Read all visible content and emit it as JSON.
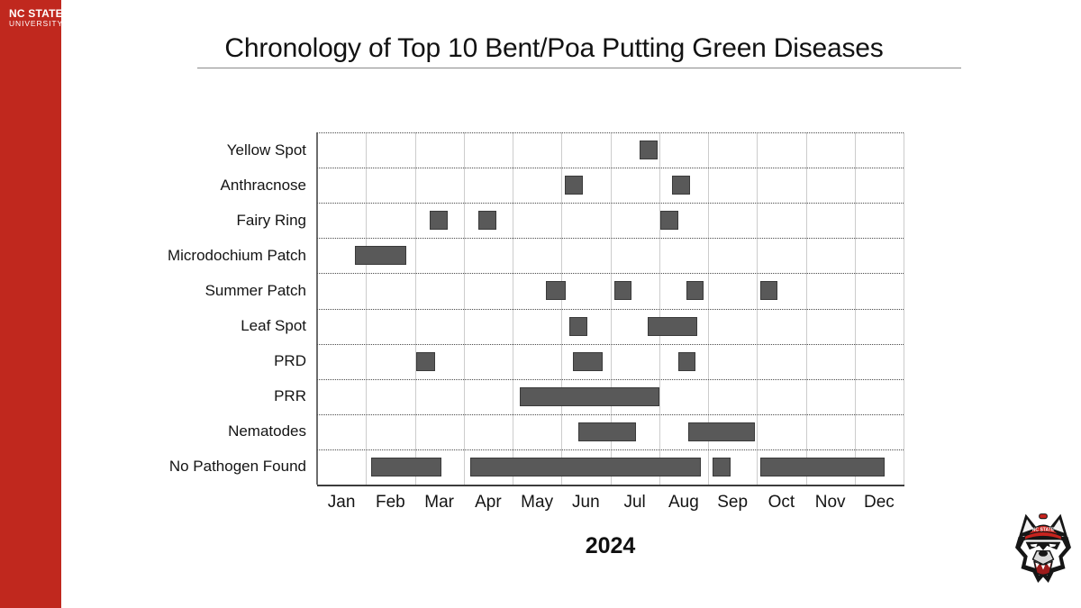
{
  "slide": {
    "background": "#ffffff"
  },
  "sidebar": {
    "color": "#C0281E",
    "wordmark_line1": "NC STATE",
    "wordmark_line2": "UNIVERSITY"
  },
  "header": {
    "title": "Chronology of Top 10 Bent/Poa Putting Green Diseases"
  },
  "chart_data": {
    "type": "gantt",
    "title": "Chronology of Top 10 Bent/Poa Putting Green Diseases",
    "year_label": "2024",
    "months": [
      "Jan",
      "Feb",
      "Mar",
      "Apr",
      "May",
      "Jun",
      "Jul",
      "Aug",
      "Sep",
      "Oct",
      "Nov",
      "Dec"
    ],
    "axis_range_months": [
      0,
      12
    ],
    "grid": {
      "vertical": "solid-light-gray",
      "horizontal": "dotted-row-separators"
    },
    "bar_color": "#595959",
    "bar_border_color": "#3A3A3A",
    "rows": [
      {
        "label": "Yellow Spot",
        "bars": [
          {
            "start": 6.6,
            "end": 6.97
          }
        ]
      },
      {
        "label": "Anthracnose",
        "bars": [
          {
            "start": 5.07,
            "end": 5.44
          },
          {
            "start": 7.26,
            "end": 7.63
          }
        ]
      },
      {
        "label": "Fairy Ring",
        "bars": [
          {
            "start": 2.3,
            "end": 2.67
          },
          {
            "start": 3.3,
            "end": 3.66
          },
          {
            "start": 7.03,
            "end": 7.39
          }
        ]
      },
      {
        "label": "Microdochium Patch",
        "bars": [
          {
            "start": 0.77,
            "end": 1.82
          }
        ]
      },
      {
        "label": "Summer Patch",
        "bars": [
          {
            "start": 4.68,
            "end": 5.08
          },
          {
            "start": 6.08,
            "end": 6.43
          },
          {
            "start": 7.55,
            "end": 7.9
          },
          {
            "start": 9.07,
            "end": 9.42
          }
        ]
      },
      {
        "label": "Leaf Spot",
        "bars": [
          {
            "start": 5.17,
            "end": 5.53
          },
          {
            "start": 6.77,
            "end": 7.77
          }
        ]
      },
      {
        "label": "PRD",
        "bars": [
          {
            "start": 2.03,
            "end": 2.42
          },
          {
            "start": 5.24,
            "end": 5.85
          },
          {
            "start": 7.39,
            "end": 7.75
          }
        ]
      },
      {
        "label": "PRR",
        "bars": [
          {
            "start": 4.15,
            "end": 7.0
          }
        ]
      },
      {
        "label": "Nematodes",
        "bars": [
          {
            "start": 5.35,
            "end": 6.52
          },
          {
            "start": 7.6,
            "end": 8.95
          }
        ]
      },
      {
        "label": "No Pathogen Found",
        "bars": [
          {
            "start": 1.11,
            "end": 2.54
          },
          {
            "start": 3.14,
            "end": 7.86
          },
          {
            "start": 8.09,
            "end": 8.46
          },
          {
            "start": 9.06,
            "end": 11.61
          }
        ]
      }
    ]
  },
  "footer_logo": {
    "name": "NC State Wolfpack mascot",
    "cap_text": "NC STATE"
  }
}
